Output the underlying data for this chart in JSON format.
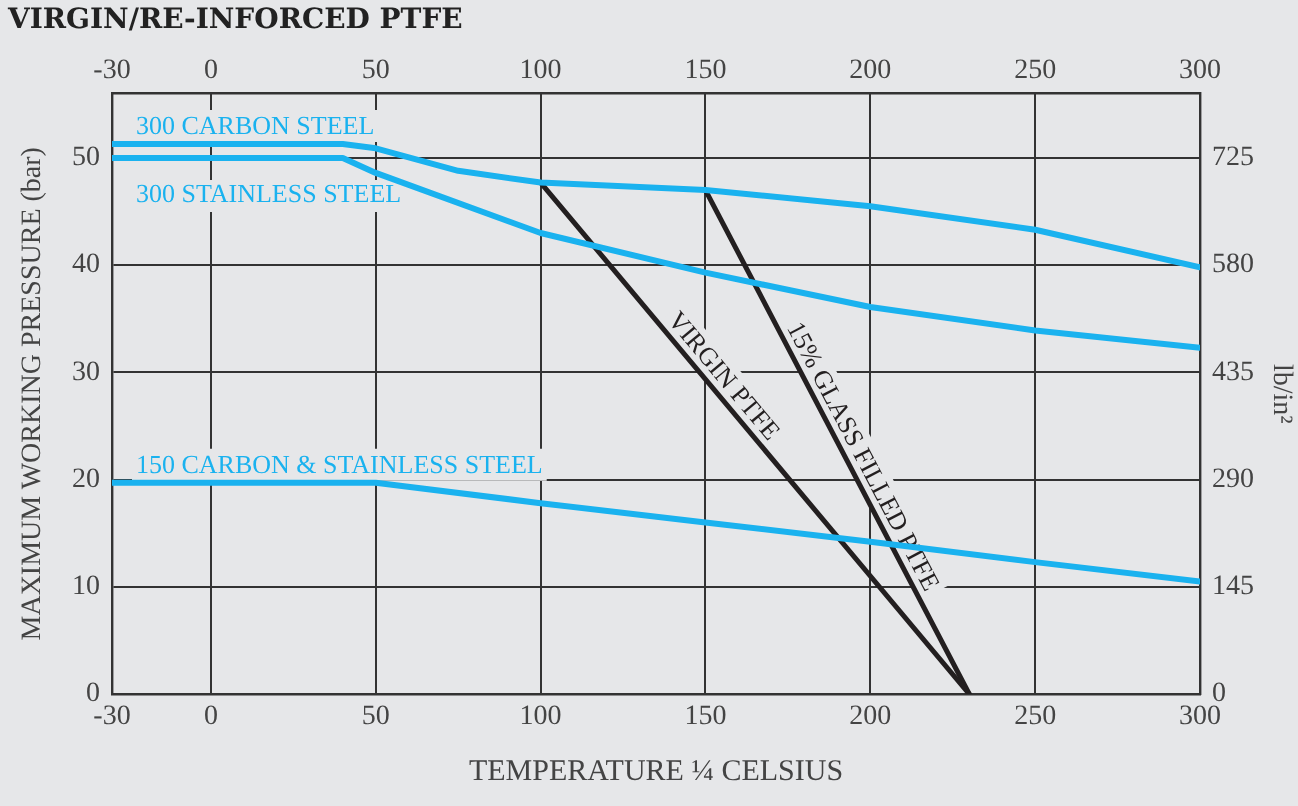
{
  "chart_data": {
    "type": "line",
    "title": "VIRGIN/RE-INFORCED PTFE",
    "xlabel": "TEMPERATURE ¼ CELSIUS",
    "ylabel": "MAXIMUM WORKING PRESSURE (bar)",
    "y2label": "lb/in²",
    "xlim": [
      -30,
      300
    ],
    "xticks": [
      -30,
      0,
      50,
      100,
      150,
      200,
      250,
      300
    ],
    "x2lim": [
      -30,
      300
    ],
    "x2ticks": [
      -30,
      0,
      50,
      100,
      150,
      200,
      250,
      300
    ],
    "ylim": [
      0,
      56
    ],
    "yticks": [
      0,
      10,
      20,
      30,
      40,
      50
    ],
    "y2lim": [
      0,
      812
    ],
    "y2ticks": [
      0,
      145,
      290,
      435,
      580,
      725
    ],
    "grid": true,
    "legend": false,
    "marker": "none",
    "line_style": "solid",
    "series": [
      {
        "name": "300 CARBON STEEL",
        "color": "#1ab2ef",
        "x": [
          -30,
          40,
          50,
          75,
          100,
          150,
          200,
          250,
          300
        ],
        "values": [
          51.3,
          51.3,
          50.9,
          48.8,
          47.7,
          47.0,
          45.5,
          43.3,
          39.8
        ]
      },
      {
        "name": "300 STAINLESS STEEL",
        "color": "#1ab2ef",
        "x": [
          -30,
          40,
          50,
          100,
          150,
          200,
          250,
          300
        ],
        "values": [
          50.0,
          50.0,
          48.6,
          43.0,
          39.3,
          36.1,
          33.9,
          32.3
        ]
      },
      {
        "name": "150 CARBON & STAINLESS STEEL",
        "color": "#1ab2ef",
        "x": [
          -30,
          50,
          100,
          150,
          200,
          250,
          300
        ],
        "values": [
          19.7,
          19.7,
          17.8,
          16.0,
          14.2,
          12.3,
          10.5
        ]
      },
      {
        "name": "VIRGIN PTFE",
        "color": "#231f20",
        "x": [
          100,
          230
        ],
        "values": [
          47.7,
          0
        ]
      },
      {
        "name": "15% GLASS FILLED PTFE",
        "color": "#231f20",
        "x": [
          150,
          230
        ],
        "values": [
          47.0,
          0
        ]
      }
    ]
  }
}
